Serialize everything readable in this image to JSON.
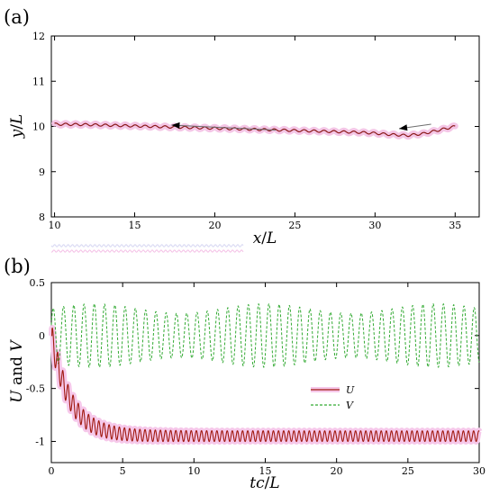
{
  "chart_data": [
    {
      "panel_label": "(a)",
      "type": "line",
      "xlabel_var": "x",
      "xlabel_unit": "L",
      "ylabel_var": "y",
      "ylabel_unit": "L",
      "xlim": [
        9.8,
        36.5
      ],
      "ylim": [
        8,
        12
      ],
      "xticks": [
        10,
        15,
        20,
        25,
        30,
        35
      ],
      "yticks": [
        8,
        9,
        10,
        11,
        12
      ],
      "series": [
        {
          "color": "#8b1a1a",
          "x": [
            10,
            12,
            14,
            16,
            18,
            20,
            22,
            24,
            26,
            28,
            29,
            30,
            31,
            32,
            33,
            34,
            35
          ],
          "y": [
            10.05,
            10.04,
            10.02,
            10.0,
            9.98,
            9.96,
            9.94,
            9.92,
            9.9,
            9.88,
            9.87,
            9.85,
            9.82,
            9.8,
            9.84,
            9.92,
            10.0
          ]
        }
      ],
      "annotations": [
        {
          "type": "arrow",
          "from": [
            23.8,
            9.92
          ],
          "to": [
            17.3,
            10.03
          ]
        },
        {
          "type": "arrow",
          "from": [
            33.5,
            10.05
          ],
          "to": [
            31.5,
            9.95
          ]
        }
      ]
    },
    {
      "panel_label": "(b)",
      "type": "line",
      "xlabel_var": "tc",
      "xlabel_unit": "L",
      "ylabel_parts": [
        "U",
        " and ",
        "V"
      ],
      "xlim": [
        0,
        30
      ],
      "ylim": [
        -1.2,
        0.5
      ],
      "xticks": [
        0,
        5,
        10,
        15,
        20,
        25,
        30
      ],
      "yticks": [
        -1,
        -0.5,
        0,
        0.5
      ],
      "series": [
        {
          "name": "U",
          "color": "#8b1a1a",
          "style": "solid",
          "final_mean": -0.95,
          "oscillation_amplitude": 0.05
        },
        {
          "name": "V",
          "color": "#33aa33",
          "style": "dashed",
          "mean": 0.0,
          "amplitude": 0.3
        }
      ],
      "legend_position": "center-right"
    }
  ]
}
